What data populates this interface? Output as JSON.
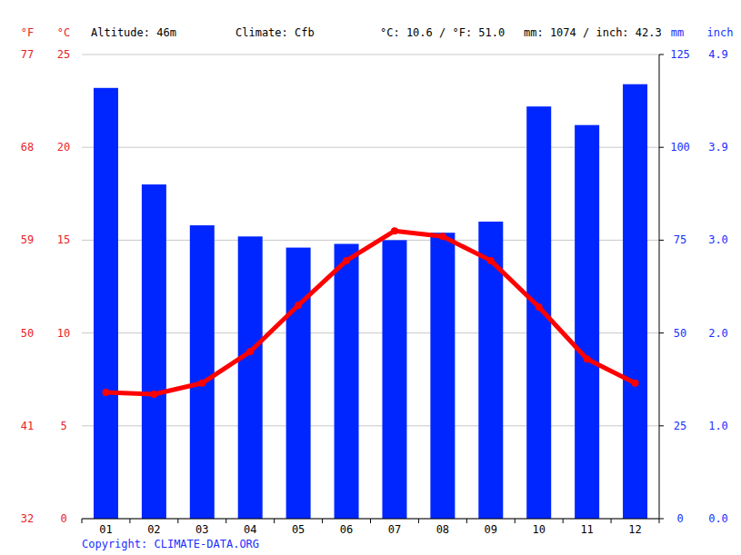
{
  "chart_data": {
    "type": "bar",
    "annotations": [
      "Altitude: 46m",
      "Climate: Cfb",
      "°C: 10.6 / °F: 51.0",
      "mm: 1074 / inch: 42.3"
    ],
    "source": "Copyright: CLIMATE-DATA.ORG",
    "y_label": "°C",
    "y_label_f": "°F",
    "y2_label": "mm",
    "y2_label_inch": "inch",
    "categories": [
      "01",
      "02",
      "03",
      "04",
      "05",
      "06",
      "07",
      "08",
      "09",
      "10",
      "11",
      "12"
    ],
    "series": [
      {
        "type": "bar",
        "axis": "y2",
        "color": "#0026ff",
        "values": [
          116,
          90,
          79,
          76,
          73,
          74,
          75,
          77,
          80,
          111,
          106,
          117
        ]
      },
      {
        "type": "line",
        "color": "#ff0000",
        "marker": "circle",
        "values": [
          6.8,
          6.7,
          7.3,
          9.0,
          11.5,
          13.9,
          15.5,
          15.2,
          13.9,
          11.4,
          8.6,
          7.3
        ]
      }
    ],
    "ylim": [
      0,
      25
    ],
    "yticks": [
      0,
      5,
      10,
      15,
      20,
      25
    ],
    "yticks_f": [
      {
        "value": 0,
        "label": "32"
      },
      {
        "value": 5,
        "label": "41"
      },
      {
        "value": 10,
        "label": "50"
      },
      {
        "value": 15,
        "label": "59"
      },
      {
        "value": 20,
        "label": "68"
      },
      {
        "value": 25,
        "label": "77"
      }
    ],
    "y2lim": [
      0,
      125
    ],
    "y2ticks": [
      0,
      25,
      50,
      75,
      100,
      125
    ],
    "y2ticks_inch": [
      {
        "value": 0,
        "label": "0.0"
      },
      {
        "value": 25,
        "label": "1.0"
      },
      {
        "value": 50,
        "label": "2.0"
      },
      {
        "value": 75,
        "label": "3.0"
      },
      {
        "value": 100,
        "label": "3.9"
      },
      {
        "value": 125,
        "label": "4.9"
      }
    ],
    "grid": true
  }
}
